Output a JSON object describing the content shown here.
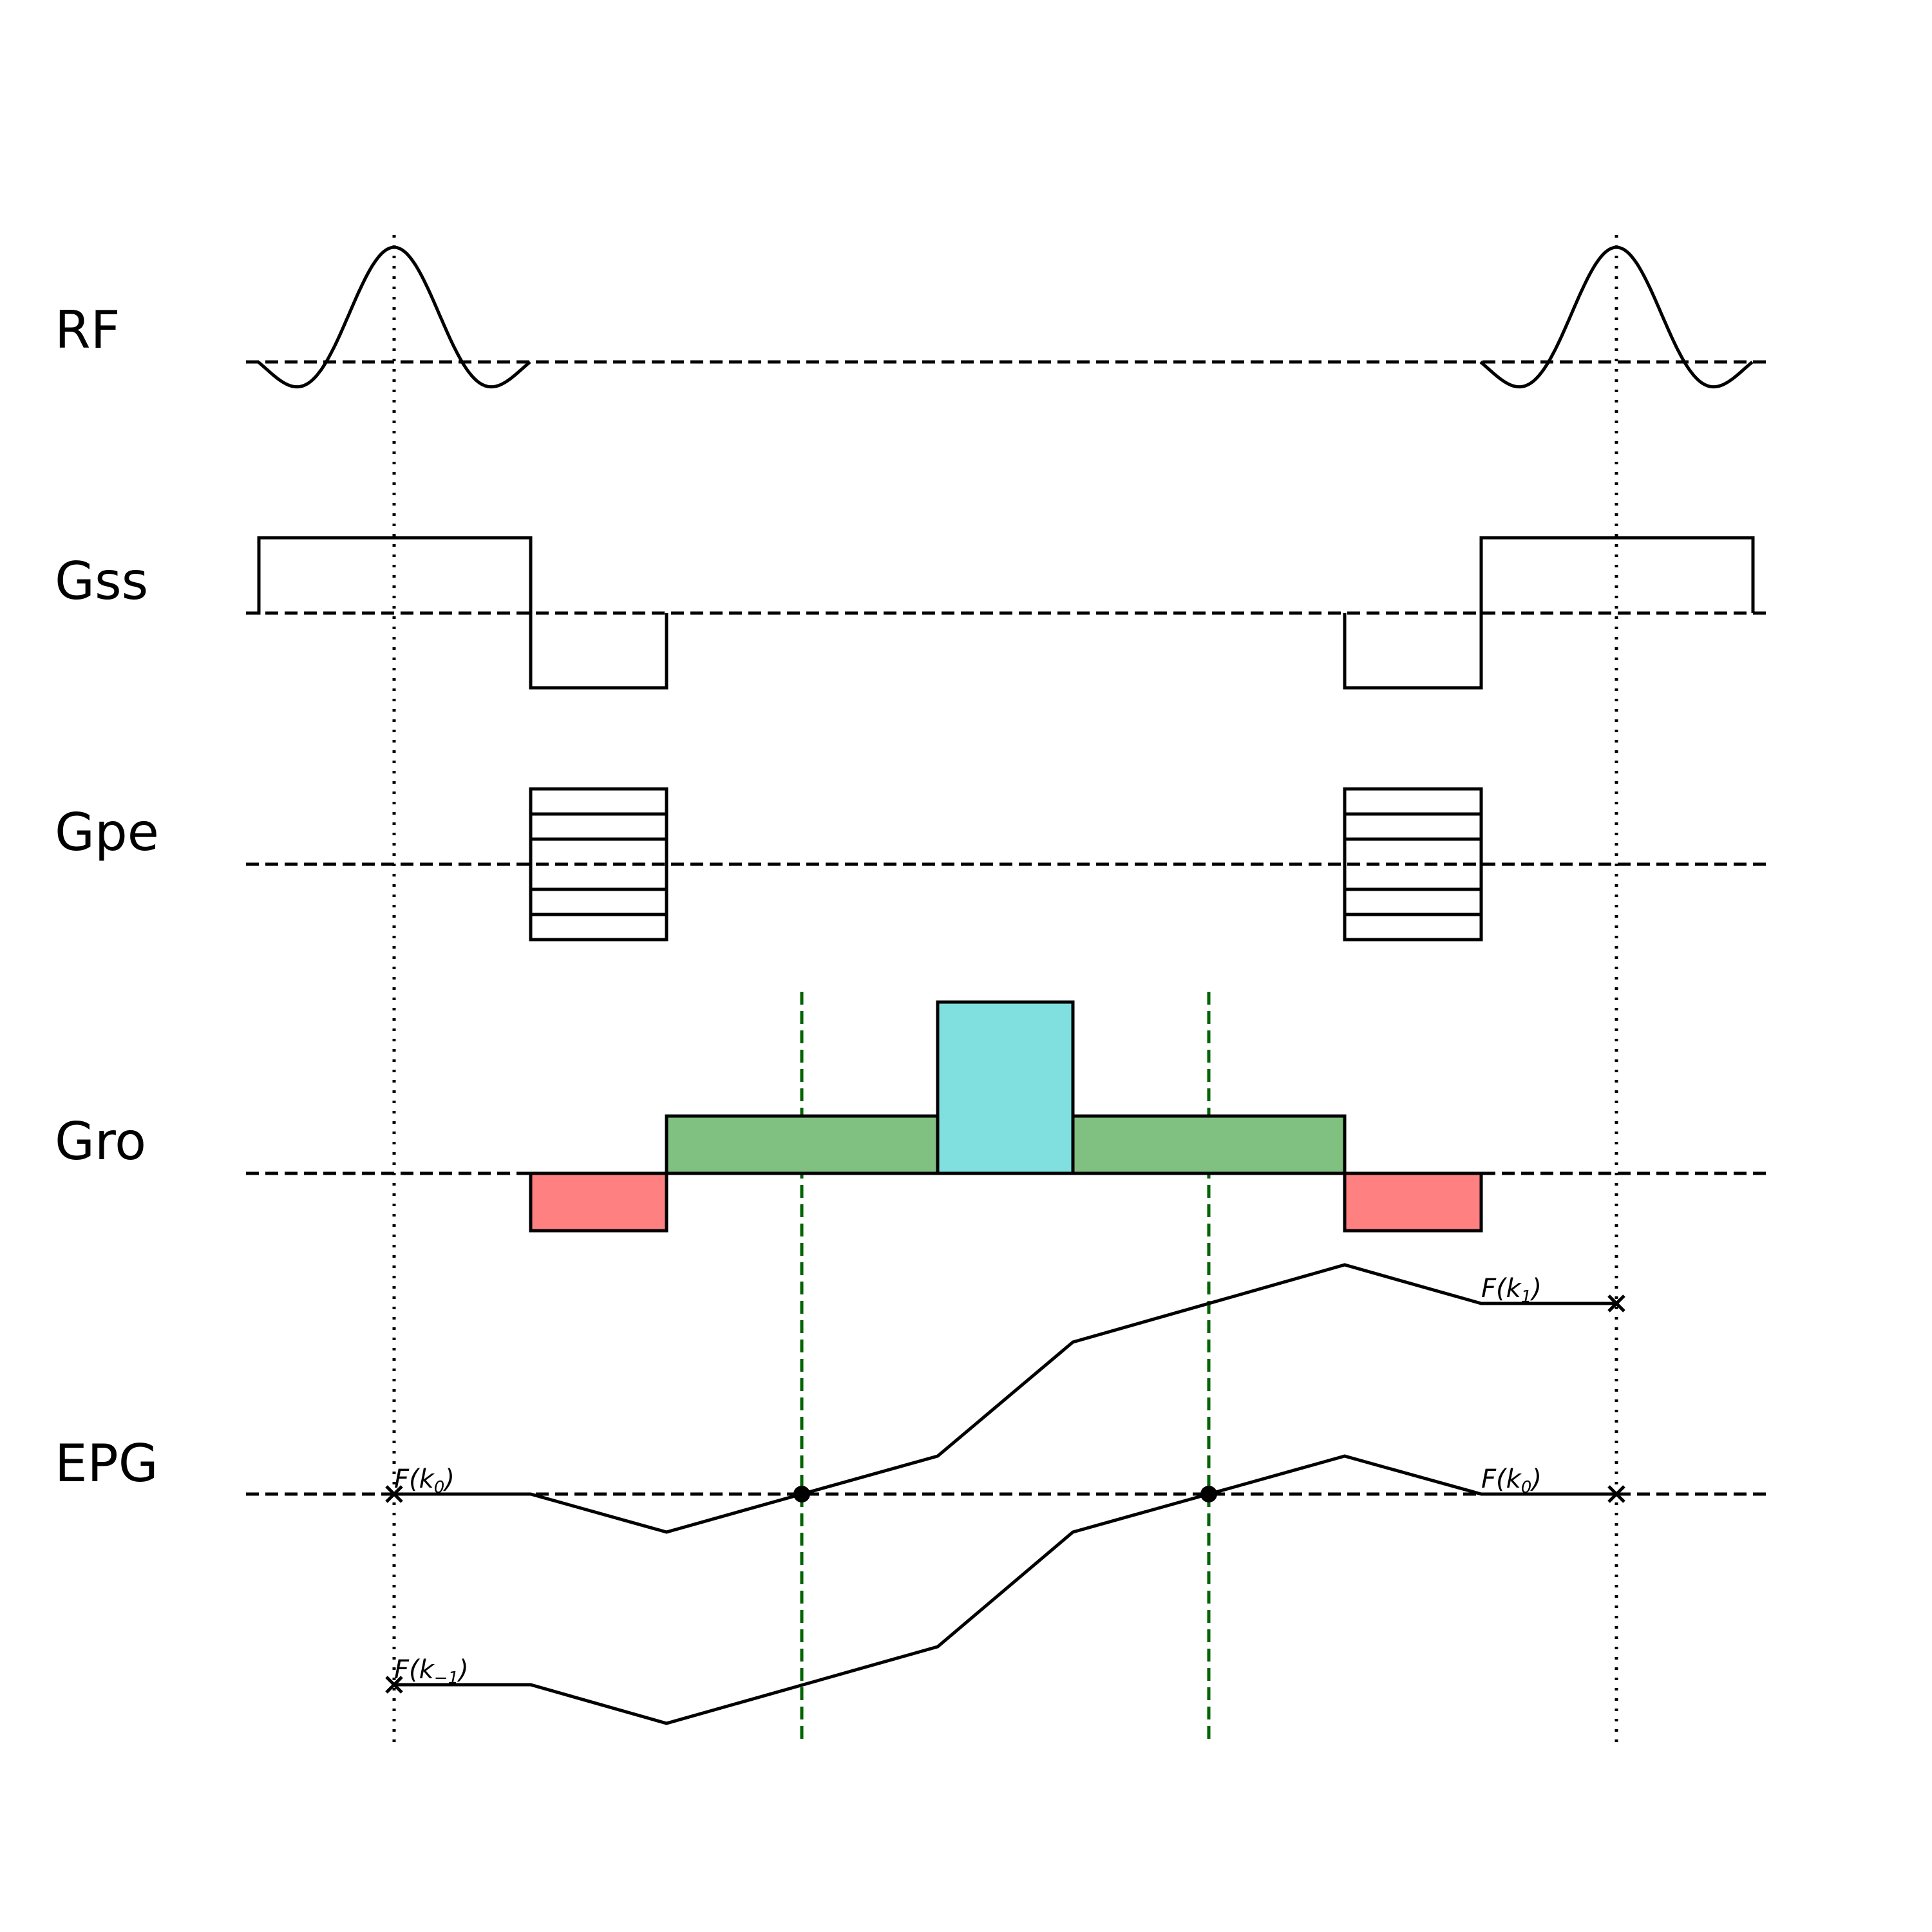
{
  "rows": [
    {
      "id": "rf",
      "label": "RF"
    },
    {
      "id": "gss",
      "label": "Gss"
    },
    {
      "id": "gpe",
      "label": "Gpe"
    },
    {
      "id": "gro",
      "label": "Gro"
    },
    {
      "id": "epg",
      "label": "EPG"
    }
  ],
  "colors": {
    "prephase_lobe": "#ff8080",
    "readout_lobe": "#80c080",
    "spoiler_lobe": "#80e0e0",
    "echo_marker": "#006400",
    "stroke": "#000000"
  },
  "state_labels": {
    "f_k0_start": {
      "pre": "F(k",
      "sub": "0",
      "post": ")"
    },
    "f_k_minus1": {
      "pre": "F(k",
      "sub": "−1",
      "post": ")"
    },
    "f_k1_end": {
      "pre": "F(k",
      "sub": "1",
      "post": ")"
    },
    "f_k0_end": {
      "pre": "F(k",
      "sub": "0",
      "post": ")"
    }
  }
}
